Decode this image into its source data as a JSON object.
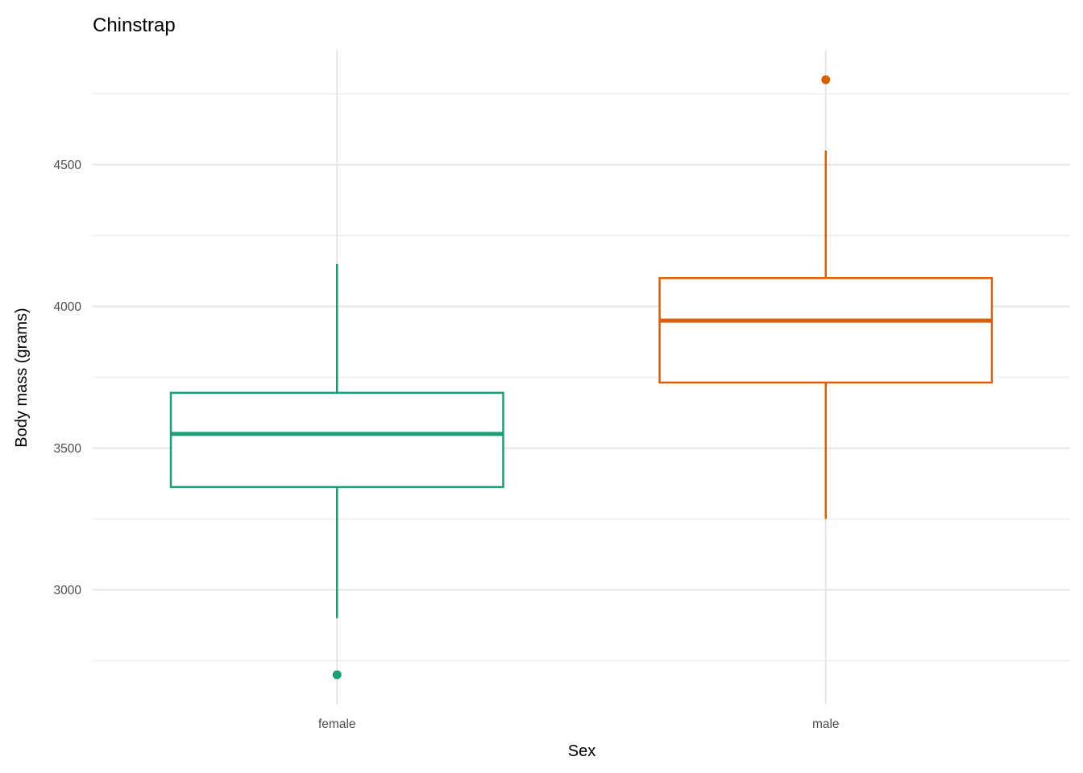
{
  "chart_data": {
    "type": "boxplot",
    "title": "Chinstrap",
    "xlabel": "Sex",
    "ylabel": "Body mass (grams)",
    "categories": [
      "female",
      "male"
    ],
    "ylim": [
      2595,
      4905
    ],
    "yticks": [
      3000,
      3500,
      4000,
      4500
    ],
    "grid": true,
    "legend": "none",
    "boxes": [
      {
        "category": "female",
        "color": "#1B9E77",
        "whisker_low": 2900,
        "q1": 3362.5,
        "median": 3550,
        "q3": 3695,
        "whisker_high": 4150,
        "outliers": [
          2700
        ]
      },
      {
        "category": "male",
        "color": "#D95F02",
        "whisker_low": 3250,
        "q1": 3731.25,
        "median": 3950,
        "q3": 4100,
        "whisker_high": 4550,
        "outliers": [
          4800
        ]
      }
    ]
  }
}
